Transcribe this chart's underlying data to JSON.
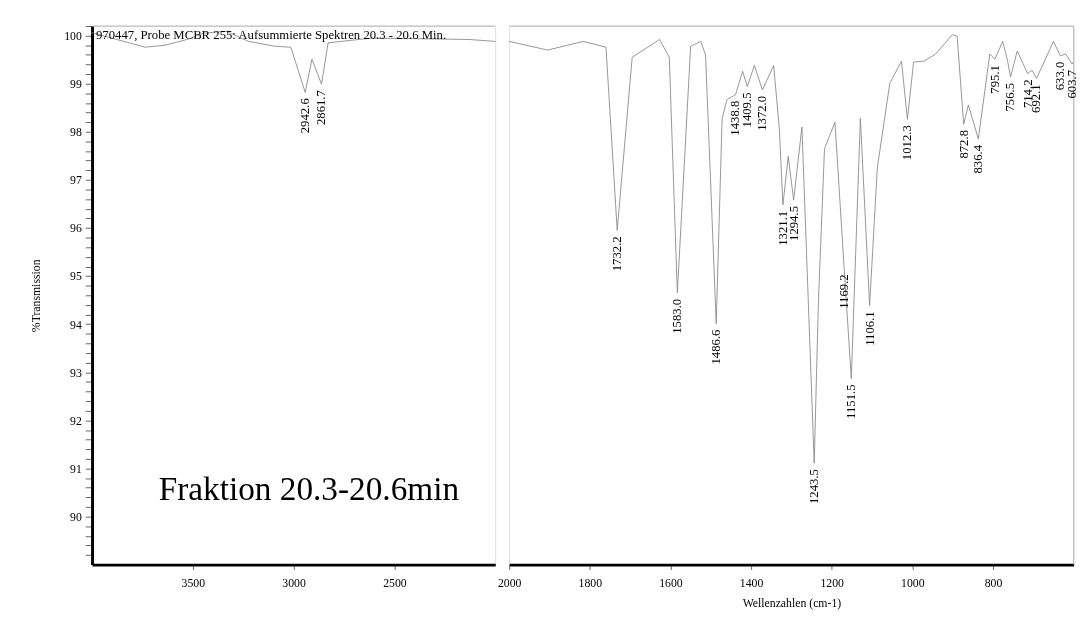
{
  "chart_data": [
    {
      "type": "line",
      "title": "970447, Probe MCBR 255: Aufsummierte Spektren 20.3 - 20.6 Min.",
      "ylabel": "%Transmission",
      "xlim": [
        4000,
        2000
      ],
      "ylim": [
        89,
        100.2
      ],
      "xticks": [
        3500,
        3000,
        2500
      ],
      "yticks": [
        {
          "value": 89.2,
          "label": null
        },
        {
          "value": 89.4,
          "label": null
        },
        {
          "value": 89.6,
          "label": null
        },
        {
          "value": 89.8,
          "label": null
        },
        90,
        {
          "value": 90.2,
          "label": null
        },
        {
          "value": 90.4,
          "label": null
        },
        {
          "value": 90.6,
          "label": null
        },
        {
          "value": 90.8,
          "label": null
        },
        91,
        {
          "value": 91.2,
          "label": null
        },
        {
          "value": 91.4,
          "label": null
        },
        {
          "value": 91.6,
          "label": null
        },
        {
          "value": 91.8,
          "label": null
        },
        92,
        {
          "value": 92.2,
          "label": null
        },
        {
          "value": 92.4,
          "label": null
        },
        {
          "value": 92.6,
          "label": null
        },
        {
          "value": 92.8,
          "label": null
        },
        93,
        {
          "value": 93.2,
          "label": null
        },
        {
          "value": 93.4,
          "label": null
        },
        {
          "value": 93.6,
          "label": null
        },
        {
          "value": 93.8,
          "label": null
        },
        94,
        {
          "value": 94.2,
          "label": null
        },
        {
          "value": 94.4,
          "label": null
        },
        {
          "value": 94.6,
          "label": null
        },
        {
          "value": 94.8,
          "label": null
        },
        95,
        {
          "value": 95.2,
          "label": null
        },
        {
          "value": 95.4,
          "label": null
        },
        {
          "value": 95.6,
          "label": null
        },
        {
          "value": 95.8,
          "label": null
        },
        96,
        {
          "value": 96.2,
          "label": null
        },
        {
          "value": 96.4,
          "label": null
        },
        {
          "value": 96.6,
          "label": null
        },
        {
          "value": 96.8,
          "label": null
        },
        97,
        {
          "value": 97.2,
          "label": null
        },
        {
          "value": 97.4,
          "label": null
        },
        {
          "value": 97.6,
          "label": null
        },
        {
          "value": 97.8,
          "label": null
        },
        98,
        {
          "value": 98.2,
          "label": null
        },
        {
          "value": 98.4,
          "label": null
        },
        {
          "value": 98.6,
          "label": null
        },
        {
          "value": 98.8,
          "label": null
        },
        99,
        {
          "value": 99.2,
          "label": null
        },
        {
          "value": 99.4,
          "label": null
        },
        {
          "value": 99.6,
          "label": null
        },
        {
          "value": 99.8,
          "label": null
        },
        100,
        {
          "value": 100.2,
          "label": null
        }
      ],
      "grid": false,
      "marker": "none",
      "line_style": "solid",
      "series": [
        {
          "color": "#8a8a8a",
          "x": [
            4000,
            3737,
            3640,
            3528,
            3447,
            3335,
            3223,
            3094,
            3014,
            2942.6,
            2909,
            2861.7,
            2829,
            2612,
            2130,
            2000
          ],
          "values": [
            100.06,
            99.76,
            99.8,
            99.92,
            100.05,
            100.09,
            99.88,
            99.78,
            99.76,
            98.82,
            99.51,
            98.99,
            99.85,
            99.95,
            99.92,
            99.88
          ]
        }
      ],
      "annotations": [
        "Fraktion 20.3-20.6min",
        {
          "text": "2942.6",
          "x": 2942.6,
          "y": 98.82
        },
        {
          "text": "2861.7",
          "x": 2861.7,
          "y": 98.99
        }
      ]
    },
    {
      "type": "line",
      "xlabel": "Wellenzahlen (cm-1)",
      "xlim": [
        2000,
        600
      ],
      "ylim": [
        89,
        100.2
      ],
      "tick_labels": "x",
      "xticks": [
        2000,
        1800,
        1600,
        1400,
        1200,
        1000,
        800
      ],
      "grid": false,
      "marker": "none",
      "line_style": "solid",
      "series": [
        {
          "color": "#8a8a8a",
          "x": [
            2000,
            1905,
            1816,
            1760,
            1732.2,
            1695,
            1627,
            1603,
            1583.0,
            1550,
            1525,
            1513,
            1486.6,
            1472,
            1460,
            1438.8,
            1421,
            1409.5,
            1392,
            1372.0,
            1344,
            1330,
            1321.1,
            1308,
            1294.5,
            1274,
            1243.5,
            1233,
            1218,
            1192,
            1169.2,
            1151.5,
            1129,
            1106.1,
            1087,
            1056,
            1027,
            1012.3,
            997,
            971,
            942,
            901,
            889,
            872.8,
            861,
            836.4,
            808,
            795.1,
            776,
            764,
            756.5,
            740,
            714.2,
            703,
            692.1,
            650,
            633.0,
            620,
            603.7,
            600
          ],
          "values": [
            99.88,
            99.7,
            99.88,
            99.76,
            95.95,
            99.55,
            99.92,
            99.55,
            94.65,
            99.78,
            99.88,
            99.6,
            94.01,
            98.27,
            98.67,
            98.77,
            99.26,
            98.94,
            99.38,
            98.87,
            99.38,
            98.06,
            96.48,
            97.49,
            96.58,
            98.1,
            91.11,
            94.49,
            97.65,
            98.2,
            95.16,
            92.87,
            98.28,
            94.39,
            97.25,
            99.01,
            99.47,
            98.26,
            99.45,
            99.47,
            99.62,
            100.02,
            99.99,
            98.16,
            98.56,
            97.85,
            99.62,
            99.51,
            99.88,
            99.48,
            99.14,
            99.68,
            99.21,
            99.28,
            99.11,
            99.88,
            99.58,
            99.62,
            99.41,
            99.45
          ]
        }
      ],
      "annotations": [
        {
          "text": "1732.2",
          "x": 1732.2,
          "y": 95.95
        },
        {
          "text": "1583.0",
          "x": 1583.0,
          "y": 94.65
        },
        {
          "text": "1486.6",
          "x": 1486.6,
          "y": 94.01
        },
        {
          "text": "1438.8",
          "x": 1438.8,
          "y": 98.77
        },
        {
          "text": "1409.5",
          "x": 1409.5,
          "y": 98.94
        },
        {
          "text": "1372.0",
          "x": 1372.0,
          "y": 98.87
        },
        {
          "text": "1321.1",
          "x": 1321.1,
          "y": 96.48
        },
        {
          "text": "1294.5",
          "x": 1294.5,
          "y": 96.58
        },
        {
          "text": "1243.5",
          "x": 1243.5,
          "y": 91.11
        },
        {
          "text": "1169.2",
          "x": 1169.2,
          "y": 95.16
        },
        {
          "text": "1151.5",
          "x": 1151.5,
          "y": 92.87
        },
        {
          "text": "1106.1",
          "x": 1106.1,
          "y": 94.39
        },
        {
          "text": "1012.3",
          "x": 1012.3,
          "y": 98.26
        },
        {
          "text": "872.8",
          "x": 872.8,
          "y": 98.16
        },
        {
          "text": "836.4",
          "x": 836.4,
          "y": 97.85
        },
        {
          "text": "795.1",
          "x": 795.1,
          "y": 99.51
        },
        {
          "text": "756.5",
          "x": 756.5,
          "y": 99.14
        },
        {
          "text": "714.2",
          "x": 714.2,
          "y": 99.21
        },
        {
          "text": "692.1",
          "x": 692.1,
          "y": 99.11
        },
        {
          "text": "633.0",
          "x": 633.0,
          "y": 99.58
        },
        {
          "text": "603.7",
          "x": 603.7,
          "y": 99.41
        }
      ]
    }
  ]
}
